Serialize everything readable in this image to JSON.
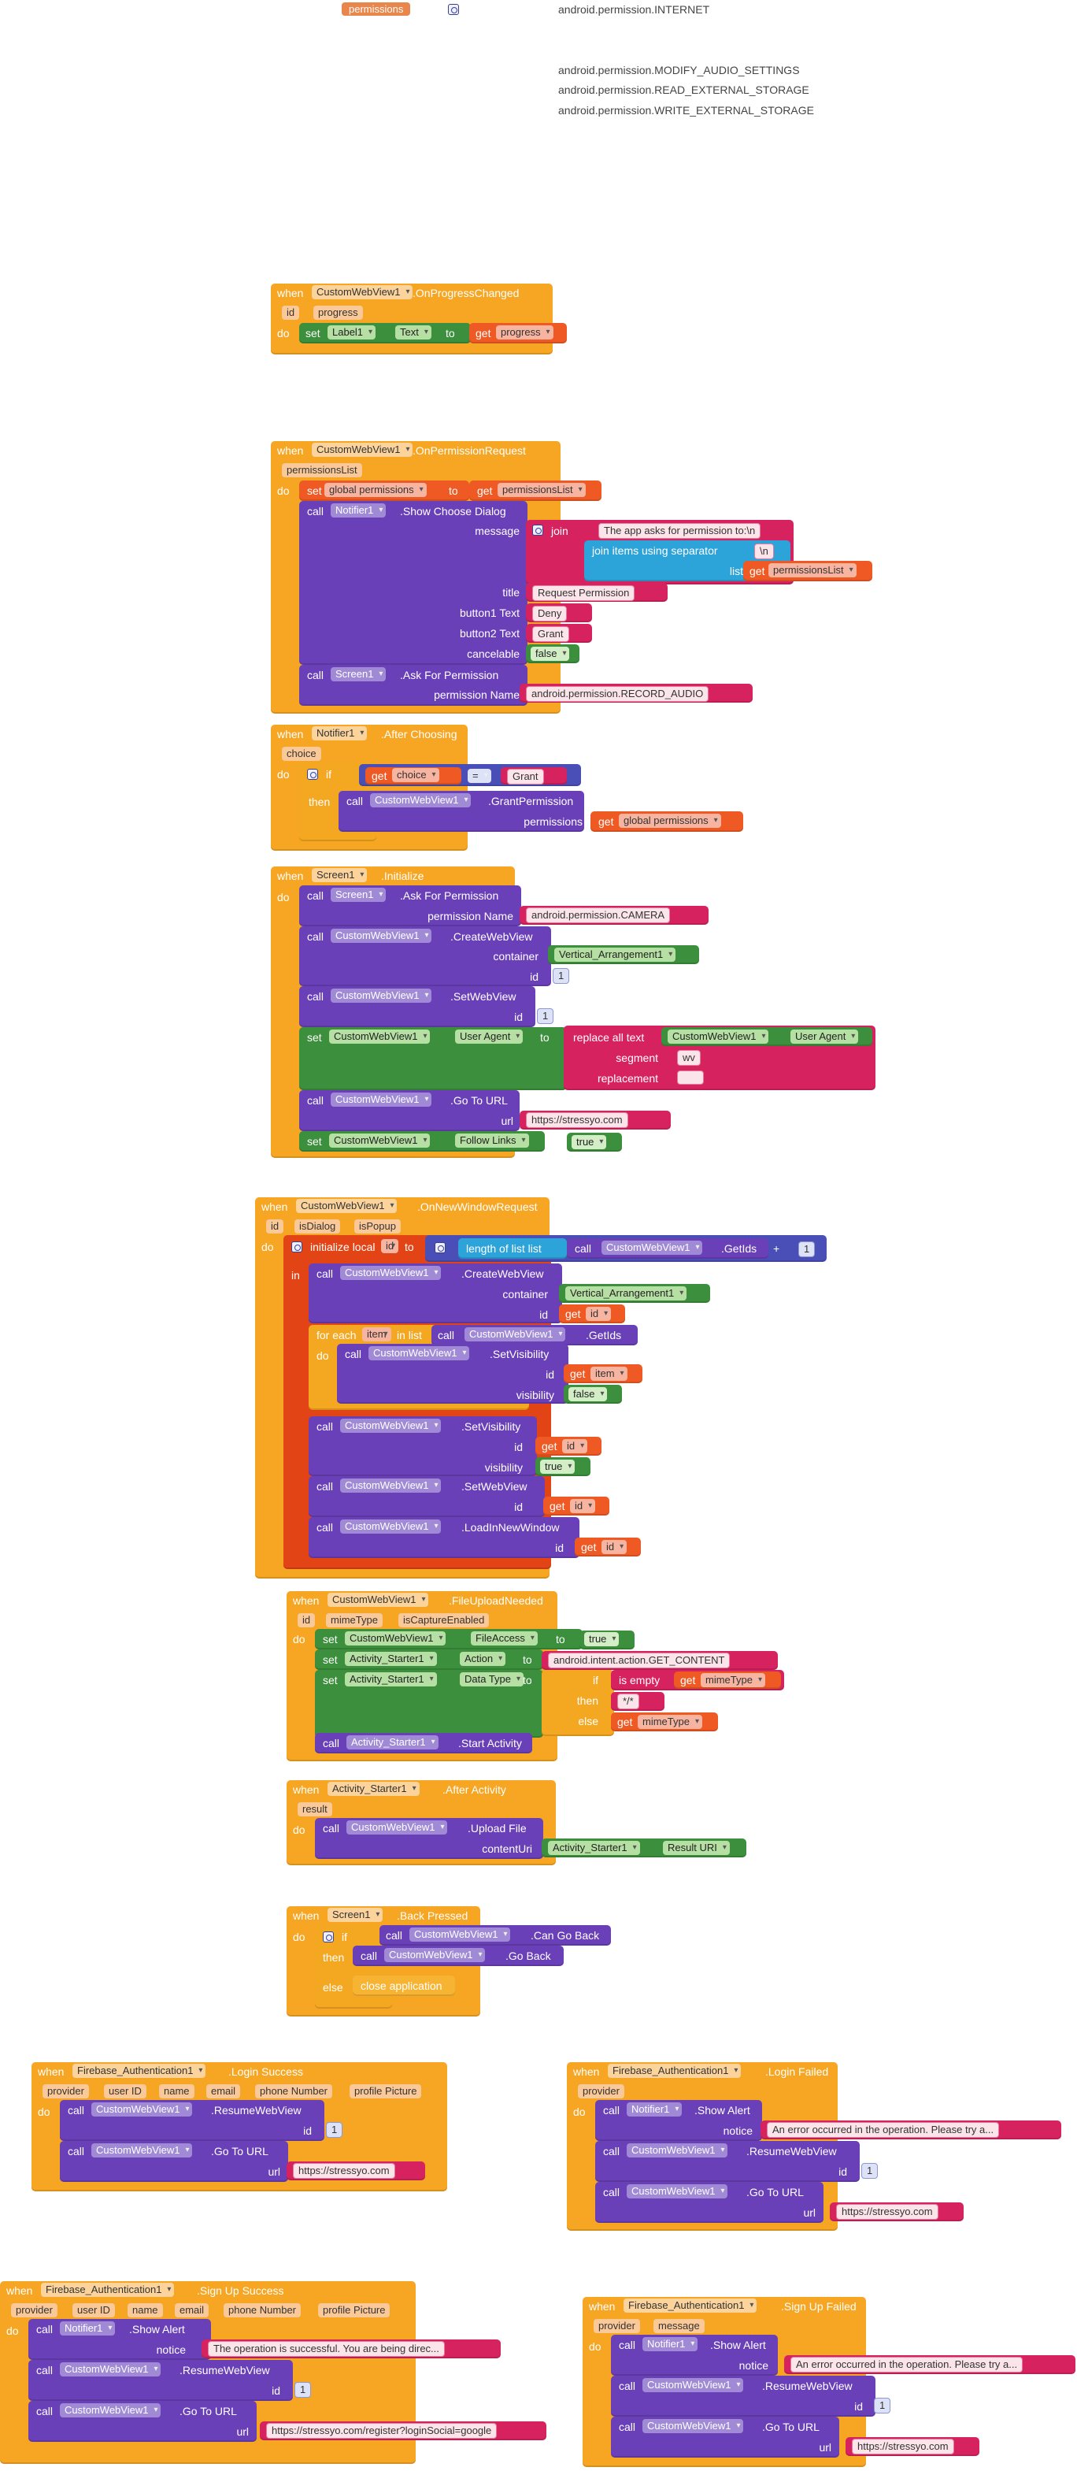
{
  "permissions": {
    "label": "permissions",
    "items": [
      "android.permission.INTERNET",
      "android.permission.MODIFY_AUDIO_SETTINGS",
      "android.permission.READ_EXTERNAL_STORAGE",
      "android.permission.WRITE_EXTERNAL_STORAGE"
    ]
  },
  "kw": {
    "when": "when",
    "do": "do",
    "set": "set",
    "get": "get",
    "to": "to",
    "call": "call",
    "if": "if",
    "then": "then",
    "else": "else",
    "in": "in",
    "for_each": "for each",
    "in_list": "in list",
    "join": "join"
  },
  "progress_event": {
    "component": "CustomWebView1",
    "event": ".OnProgressChanged",
    "params": [
      "id",
      "progress"
    ],
    "set_comp": "Label1",
    "set_prop": "Text",
    "get_var": "progress"
  },
  "perm_request": {
    "component": "CustomWebView1",
    "event": ".OnPermissionRequest",
    "param": "permissionsList",
    "set_var": "global permissions",
    "get_var": "permissionsList",
    "notifier": "Notifier1",
    "method": ".Show Choose Dialog",
    "message_label": "message",
    "str_asks": "The app asks for permission to:\\n",
    "join_sep_label": "join items using separator",
    "sep": "\\n",
    "list_label": "list",
    "list_var": "permissionsList",
    "title_label": "title",
    "title": "Request Permission",
    "b1_label": "button1 Text",
    "b1": "Deny",
    "b2_label": "button2 Text",
    "b2": "Grant",
    "cancel_label": "cancelable",
    "cancel": "false",
    "screen": "Screen1",
    "ask": ".Ask For Permission",
    "pname_label": "permission Name",
    "pname": "android.permission.RECORD_AUDIO"
  },
  "after_choosing": {
    "component": "Notifier1",
    "event": ".After Choosing",
    "param": "choice",
    "get_var": "choice",
    "op": "=",
    "grant": "Grant",
    "comp": "CustomWebView1",
    "method": ".GrantPermission",
    "perm_label": "permissions",
    "perm_var": "global permissions"
  },
  "screen_init": {
    "component": "Screen1",
    "event": ".Initialize",
    "ask": ".Ask For Permission",
    "pname_label": "permission Name",
    "pname": "android.permission.CAMERA",
    "cwv": "CustomWebView1",
    "create": ".CreateWebView",
    "container_label": "container",
    "container": "Vertical_Arrangement1",
    "id_label": "id",
    "id1": "1",
    "setwv": ".SetWebView",
    "id2": "1",
    "ua": "User Agent",
    "replace": "replace all text",
    "segment_label": "segment",
    "segment": "wv",
    "replacement_label": "replacement",
    "replacement": "",
    "goto": ".Go To URL",
    "url_label": "url",
    "url": "https://stressyo.com",
    "follow": "Follow Links",
    "true": "true"
  },
  "new_window": {
    "component": "CustomWebView1",
    "event": ".OnNewWindowRequest",
    "params": [
      "id",
      "isDialog",
      "isPopup"
    ],
    "init_local": "initialize local",
    "id": "id",
    "length": "length of list  list",
    "getids": ".GetIds",
    "plus": "+",
    "one": "1",
    "create": ".CreateWebView",
    "container_label": "container",
    "container": "Vertical_Arrangement1",
    "id_label": "id",
    "item": "item",
    "setvis": ".SetVisibility",
    "vis_label": "visibility",
    "false": "false",
    "true": "true",
    "setwv": ".SetWebView",
    "load": ".LoadInNewWindow"
  },
  "file_upload": {
    "component": "CustomWebView1",
    "event": ".FileUploadNeeded",
    "params": [
      "id",
      "mimeType",
      "isCaptureEnabled"
    ],
    "file_access": "FileAccess",
    "true": "true",
    "activity": "Activity_Starter1",
    "action": "Action",
    "action_val": "android.intent.action.GET_CONTENT",
    "data_type": "Data Type",
    "is_empty": "is empty",
    "mime": "mimeType",
    "star": "*/*",
    "start": ".Start Activity"
  },
  "after_activity": {
    "component": "Activity_Starter1",
    "event": ".After Activity",
    "param": "result",
    "cwv": "CustomWebView1",
    "method": ".Upload File",
    "content_label": "contentUri",
    "result_prop": "Result URI"
  },
  "back_pressed": {
    "component": "Screen1",
    "event": ".Back Pressed",
    "cwv": "CustomWebView1",
    "can": ".Can Go Back",
    "back": ".Go Back",
    "close": "close application"
  },
  "login_success": {
    "component": "Firebase_Authentication1",
    "event": ".Login Success",
    "params": [
      "provider",
      "user ID",
      "name",
      "email",
      "phone Number",
      "profile Picture"
    ],
    "cwv": "CustomWebView1",
    "resume": ".ResumeWebView",
    "id_label": "id",
    "id": "1",
    "goto": ".Go To URL",
    "url_label": "url",
    "url": "https://stressyo.com"
  },
  "login_failed": {
    "component": "Firebase_Authentication1",
    "event": ".Login Failed",
    "params": [
      "provider"
    ],
    "notifier": "Notifier1",
    "alert": ".Show Alert",
    "notice_label": "notice",
    "notice": "An error occurred in the operation. Please try a...",
    "cwv": "CustomWebView1",
    "resume": ".ResumeWebView",
    "id_label": "id",
    "id": "1",
    "goto": ".Go To URL",
    "url_label": "url",
    "url": "https://stressyo.com"
  },
  "signup_success": {
    "component": "Firebase_Authentication1",
    "event": ".Sign Up Success",
    "params": [
      "provider",
      "user ID",
      "name",
      "email",
      "phone Number",
      "profile Picture"
    ],
    "notifier": "Notifier1",
    "alert": ".Show Alert",
    "notice_label": "notice",
    "notice": "The operation is successful. You are being direc...",
    "cwv": "CustomWebView1",
    "resume": ".ResumeWebView",
    "id_label": "id",
    "id": "1",
    "goto": ".Go To URL",
    "url_label": "url",
    "url": "https://stressyo.com/register?loginSocial=google"
  },
  "signup_failed": {
    "component": "Firebase_Authentication1",
    "event": ".Sign Up Failed",
    "params": [
      "provider",
      "message"
    ],
    "notifier": "Notifier1",
    "alert": ".Show Alert",
    "notice_label": "notice",
    "notice": "An error occurred in the operation. Please try a...",
    "cwv": "CustomWebView1",
    "resume": ".ResumeWebView",
    "id_label": "id",
    "id": "1",
    "goto": ".Go To URL",
    "url_label": "url",
    "url": "https://stressyo.com"
  },
  "colors": {
    "event": "#f6a623",
    "component": "#6a40b8",
    "setter": "#3c8f3c",
    "variable": "#ef5a24",
    "text": "#d6235f",
    "control": "#f4a822",
    "list": "#2da4d9",
    "logic": "#4a4fb8"
  }
}
